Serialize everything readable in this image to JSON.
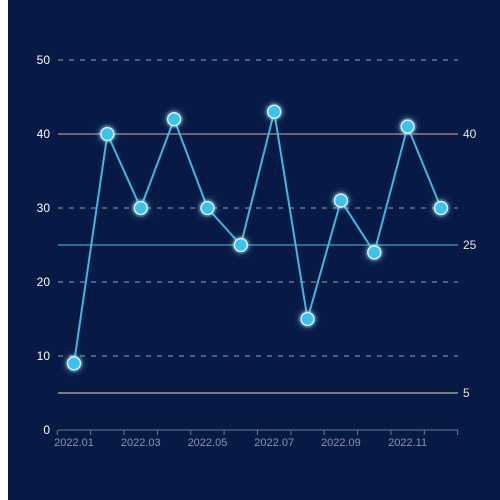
{
  "colors": {
    "background": "#061a45",
    "line": "#3cb8e6",
    "point_fill": "#3cc3ec",
    "point_glow": "#a9e6ff",
    "grid": "#c7ccd9",
    "axis": "#6e7891",
    "marker_upper": "#e6a3ad",
    "marker_middle": "#53bfe0",
    "marker_lower": "#e8e0a8"
  },
  "chart_data": {
    "type": "line",
    "categories": [
      "2022.01",
      "2022.02",
      "2022.03",
      "2022.04",
      "2022.05",
      "2022.06",
      "2022.07",
      "2022.08",
      "2022.09",
      "2022.10",
      "2022.11",
      "2022.12"
    ],
    "x_tick_labels": [
      "2022.01",
      "2022.03",
      "2022.05",
      "2022.07",
      "2022.09",
      "2022.11"
    ],
    "series": [
      {
        "values": [
          9,
          40,
          30,
          42,
          30,
          25,
          43,
          15,
          31,
          24,
          41,
          30
        ]
      }
    ],
    "ylim": [
      0,
      50
    ],
    "y_ticks": [
      0,
      10,
      20,
      30,
      40,
      50
    ],
    "grid": true,
    "reference_lines": [
      {
        "value": 40,
        "label": "40",
        "color_key": "marker_upper"
      },
      {
        "value": 25,
        "label": "25",
        "color_key": "marker_middle"
      },
      {
        "value": 5,
        "label": "5",
        "color_key": "marker_lower"
      }
    ]
  }
}
